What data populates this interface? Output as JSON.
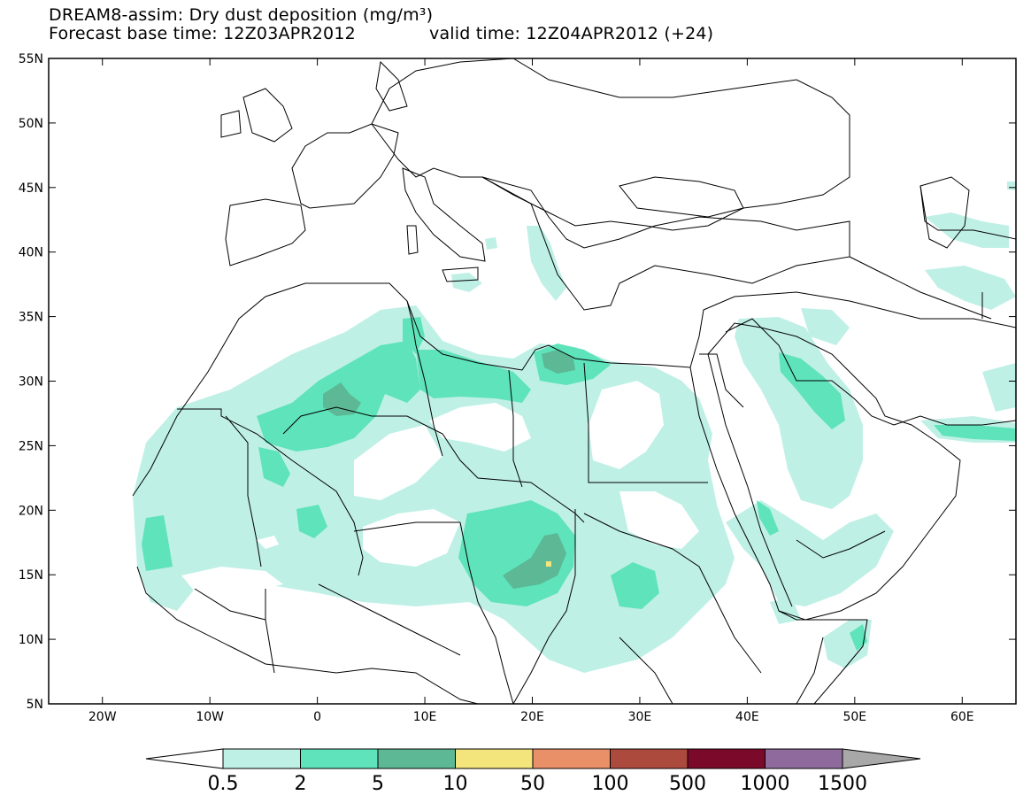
{
  "title": {
    "line1": "DREAM8-assim: Dry dust deposition (mg/m³)",
    "line2_base": "Forecast base time: 12Z03APR2012",
    "line2_valid": "valid time: 12Z04APR2012 (+24)"
  },
  "map": {
    "lon_range": [
      -25,
      65
    ],
    "lat_range": [
      5,
      55
    ],
    "x_ticks": [
      {
        "lon": -20,
        "label": "20W"
      },
      {
        "lon": -10,
        "label": "10W"
      },
      {
        "lon": 0,
        "label": "0"
      },
      {
        "lon": 10,
        "label": "10E"
      },
      {
        "lon": 20,
        "label": "20E"
      },
      {
        "lon": 30,
        "label": "30E"
      },
      {
        "lon": 40,
        "label": "40E"
      },
      {
        "lon": 50,
        "label": "50E"
      },
      {
        "lon": 60,
        "label": "60E"
      }
    ],
    "y_ticks": [
      {
        "lat": 55,
        "label": "55N"
      },
      {
        "lat": 50,
        "label": "50N"
      },
      {
        "lat": 45,
        "label": "45N"
      },
      {
        "lat": 40,
        "label": "40N"
      },
      {
        "lat": 35,
        "label": "35N"
      },
      {
        "lat": 30,
        "label": "30N"
      },
      {
        "lat": 25,
        "label": "25N"
      },
      {
        "lat": 20,
        "label": "20N"
      },
      {
        "lat": 15,
        "label": "15N"
      },
      {
        "lat": 10,
        "label": "10N"
      },
      {
        "lat": 5,
        "label": "5N"
      }
    ]
  },
  "colorbar": {
    "labels": [
      "0.5",
      "2",
      "5",
      "10",
      "50",
      "100",
      "500",
      "1000",
      "1500"
    ],
    "colors": [
      "#bff0e6",
      "#5ee3ba",
      "#5cb895",
      "#f3e47c",
      "#ea9068",
      "#ad4a3e",
      "#7b0a2a",
      "#8e6b9c",
      "#a8a8a8"
    ],
    "low_color": "#ffffff"
  },
  "colors": {
    "level1": "#bff0e6",
    "level2": "#5ee3ba",
    "level3": "#5cb895",
    "level4": "#f3e47c",
    "coast": "#000000"
  }
}
